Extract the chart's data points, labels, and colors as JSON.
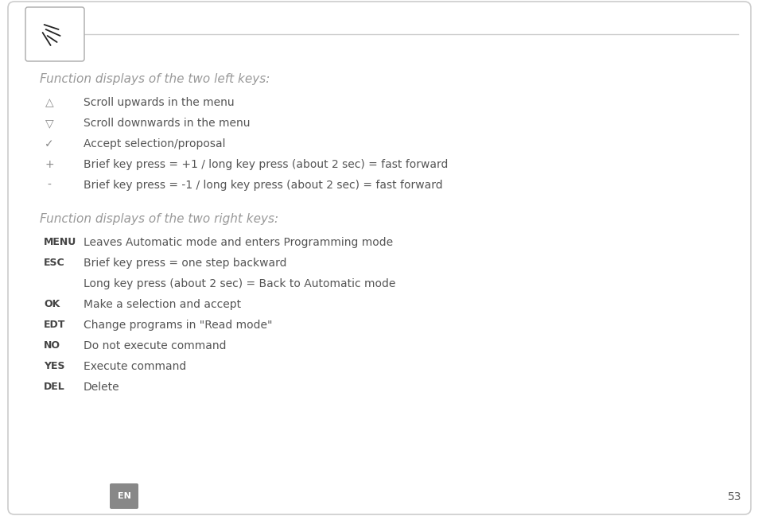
{
  "bg_color": "#ffffff",
  "border_color": "#cccccc",
  "heading_color": "#999999",
  "text_color": "#555555",
  "bold_color": "#444444",
  "symbol_color": "#888888",
  "section1_title": "Function displays of the two left keys:",
  "section2_title": "Function displays of the two right keys:",
  "left_symbols": [
    "△",
    "▽",
    "✓",
    "+",
    "-"
  ],
  "left_descs": [
    "Scroll upwards in the menu",
    "Scroll downwards in the menu",
    "Accept selection/proposal",
    "Brief key press = +1 / long key press (about 2 sec) = fast forward",
    "Brief key press = -1 / long key press (about 2 sec) = fast forward"
  ],
  "right_keys": [
    "MENU",
    "ESC",
    "",
    "OK",
    "EDT",
    "NO",
    "YES",
    "DEL"
  ],
  "right_descs": [
    "Leaves Automatic mode and enters Programming mode",
    "Brief key press = one step backward",
    "Long key press (about 2 sec) = Back to Automatic mode",
    "Make a selection and accept",
    "Change programs in \"Read mode\"",
    "Do not execute command",
    "Execute command",
    "Delete"
  ],
  "footer_label": "EN",
  "page_number": "53"
}
